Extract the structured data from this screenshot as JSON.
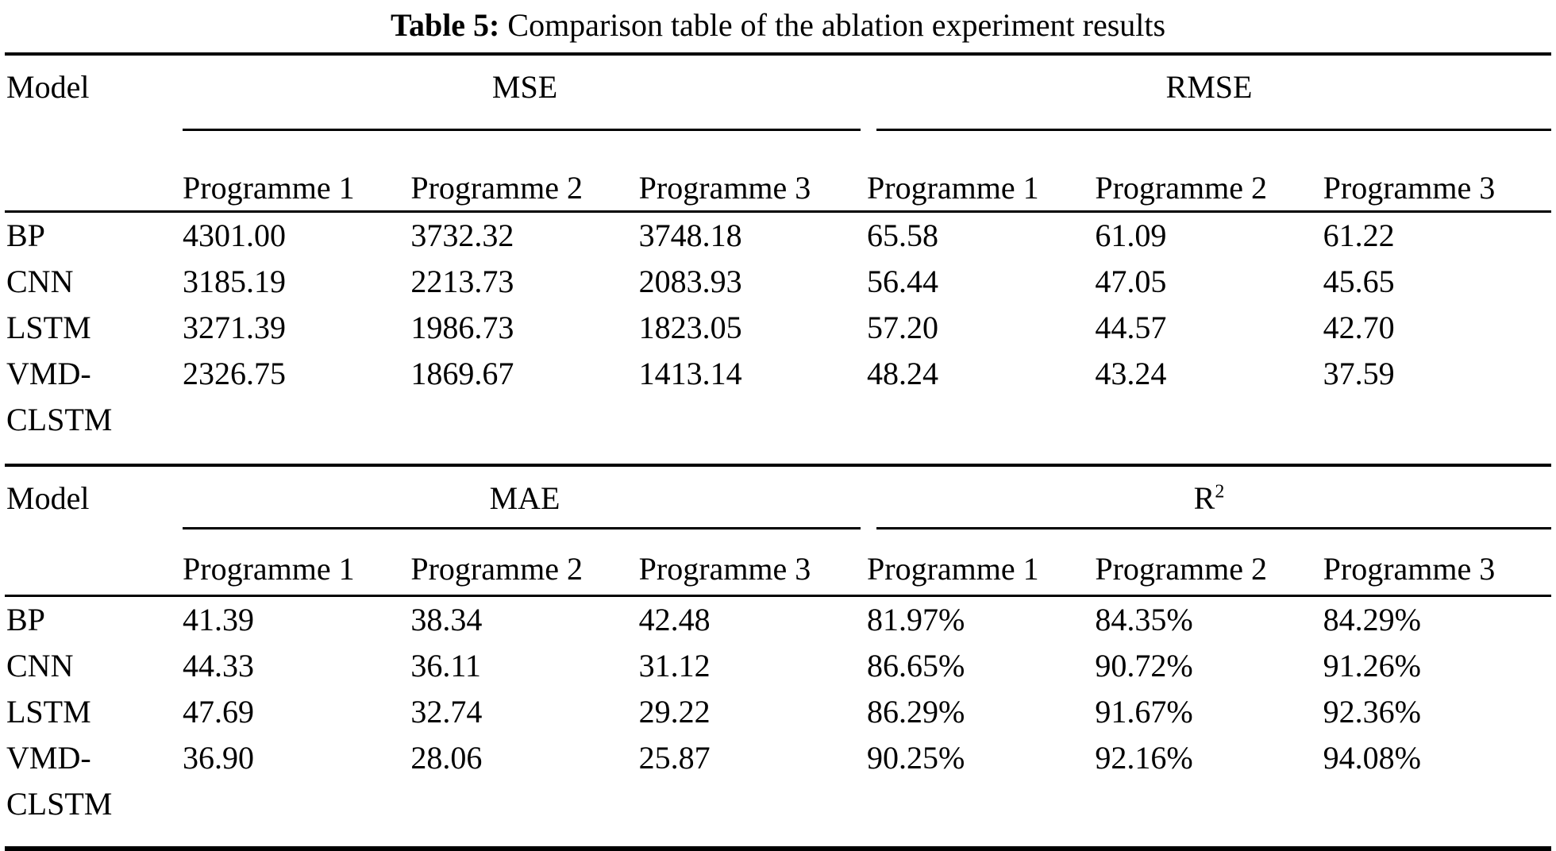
{
  "caption": {
    "label": "Table 5:",
    "text": " Comparison table of the ablation experiment results"
  },
  "table": {
    "sections": [
      {
        "model_header": "Model",
        "groups": [
          {
            "name": "MSE",
            "sup": "",
            "columns": [
              "Programme 1",
              "Programme 2",
              "Programme 3"
            ]
          },
          {
            "name": "RMSE",
            "sup": "",
            "columns": [
              "Programme 1",
              "Programme 2",
              "Programme 3"
            ]
          }
        ],
        "rows": [
          {
            "model": "BP",
            "values": [
              "4301.00",
              "3732.32",
              "3748.18",
              "65.58",
              "61.09",
              "61.22"
            ]
          },
          {
            "model": "CNN",
            "values": [
              "3185.19",
              "2213.73",
              "2083.93",
              "56.44",
              "47.05",
              "45.65"
            ]
          },
          {
            "model": "LSTM",
            "values": [
              "3271.39",
              "1986.73",
              "1823.05",
              "57.20",
              "44.57",
              "42.70"
            ]
          },
          {
            "model": "VMD-CLSTM",
            "values": [
              "2326.75",
              "1869.67",
              "1413.14",
              "48.24",
              "43.24",
              "37.59"
            ]
          }
        ]
      },
      {
        "model_header": "Model",
        "groups": [
          {
            "name": "MAE",
            "sup": "",
            "columns": [
              "Programme 1",
              "Programme 2",
              "Programme 3"
            ]
          },
          {
            "name": "R",
            "sup": "2",
            "columns": [
              "Programme 1",
              "Programme 2",
              "Programme 3"
            ]
          }
        ],
        "rows": [
          {
            "model": "BP",
            "values": [
              "41.39",
              "38.34",
              "42.48",
              "81.97%",
              "84.35%",
              "84.29%"
            ]
          },
          {
            "model": "CNN",
            "values": [
              "44.33",
              "36.11",
              "31.12",
              "86.65%",
              "90.72%",
              "91.26%"
            ]
          },
          {
            "model": "LSTM",
            "values": [
              "47.69",
              "32.74",
              "29.22",
              "86.29%",
              "91.67%",
              "92.36%"
            ]
          },
          {
            "model": "VMD-CLSTM",
            "values": [
              "36.90",
              "28.06",
              "25.87",
              "90.25%",
              "92.16%",
              "94.08%"
            ]
          }
        ]
      }
    ]
  }
}
